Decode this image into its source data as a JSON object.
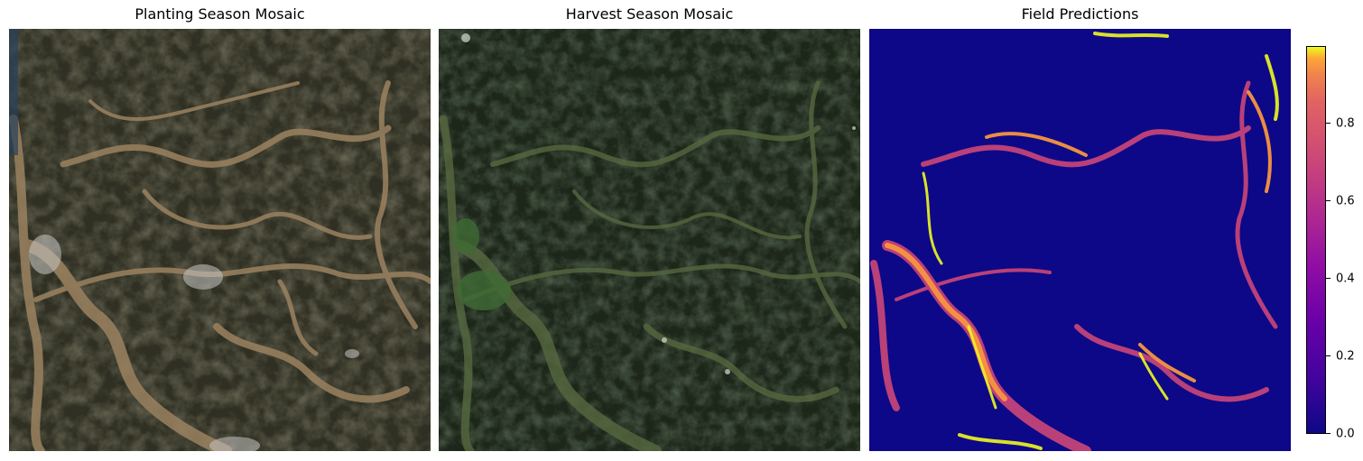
{
  "panels": [
    {
      "title": "Planting Season Mosaic"
    },
    {
      "title": "Harvest Season Mosaic"
    },
    {
      "title": "Field Predictions"
    }
  ],
  "colorbar": {
    "colormap": "plasma",
    "ticks": [
      "0.0",
      "0.2",
      "0.4",
      "0.6",
      "0.8"
    ],
    "range": [
      0.0,
      1.0
    ]
  },
  "colors": {
    "planting_ground": "#3a3628",
    "planting_valley": "#9b8260",
    "harvest_ground": "#1f2a1c",
    "harvest_valley": "#56683f",
    "prediction_background": "#0d0887",
    "prediction_high": "#f0f921",
    "prediction_mid": "#cc4778"
  }
}
